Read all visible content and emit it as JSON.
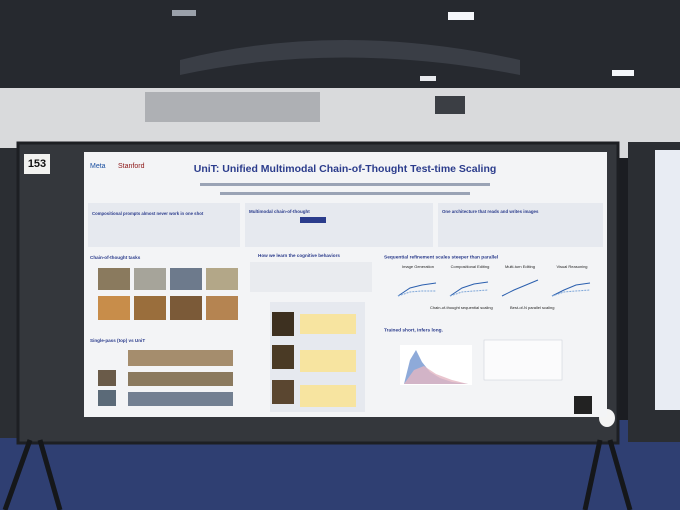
{
  "booth_number": "153",
  "poster": {
    "logos": [
      "Meta",
      "Stanford"
    ],
    "title": "UniT: Unified Multimodal Chain-of-Thought Test-time Scaling",
    "sections": [
      "Compositional prompts almost never work in one shot",
      "Multimodal chain-of-thought",
      "One architecture that reads and writes images",
      "Chain-of-thought tasks",
      "How we learn the cognitive behaviors",
      "Sequential refinement scales steeper than parallel",
      "Single-pass (top) vs UniT",
      "Trained short, infers long."
    ],
    "plot_titles": [
      "Image Generation",
      "Compositional Editing",
      "Multi-turn Editing",
      "Visual Reasoning"
    ],
    "legend": [
      "Chain-of-thought sequential scaling",
      "Best-of-N parallel scaling"
    ]
  }
}
